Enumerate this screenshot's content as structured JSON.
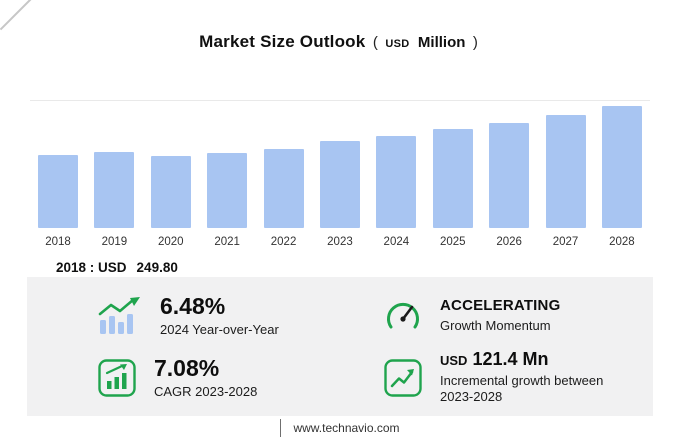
{
  "header": {
    "title": "Market Size Outlook",
    "open_paren": "(",
    "unit_small": "USD",
    "unit": "Million",
    "close_paren": ")"
  },
  "chart_data": {
    "type": "bar",
    "title": "Market Size Outlook (USD Million)",
    "categories": [
      "2018",
      "2019",
      "2020",
      "2021",
      "2022",
      "2023",
      "2024",
      "2025",
      "2026",
      "2027",
      "2028"
    ],
    "values": [
      249.8,
      261,
      248,
      259,
      272,
      297.8,
      317.1,
      339,
      362,
      388,
      419.2
    ],
    "ylabel": "USD Million",
    "ylim": [
      0,
      440
    ],
    "grid": "top-gridline-only",
    "legend": "none",
    "bar_color": "#a8c5f2"
  },
  "annotation": {
    "year_label": "2018 : USD",
    "value": "249.80"
  },
  "stats": [
    {
      "icon": "yoy-bars-arrow-icon",
      "prefix": "",
      "value": "6.48%",
      "caption": "2024 Year-over-Year"
    },
    {
      "icon": "speedometer-icon",
      "prefix": "",
      "value": "ACCELERATING",
      "caption": "Growth Momentum"
    },
    {
      "icon": "cagr-chart-icon",
      "prefix": "",
      "value": "7.08%",
      "caption": "CAGR 2023-2028"
    },
    {
      "icon": "incremental-growth-icon",
      "prefix": "USD",
      "value": "121.4 Mn",
      "caption": "Incremental growth between 2023-2028"
    }
  ],
  "footer": {
    "url": "www.technavio.com"
  },
  "colors": {
    "bar": "#a8c5f2",
    "accent_green": "#1fa44d",
    "panel_bg": "#f1f1f2"
  }
}
